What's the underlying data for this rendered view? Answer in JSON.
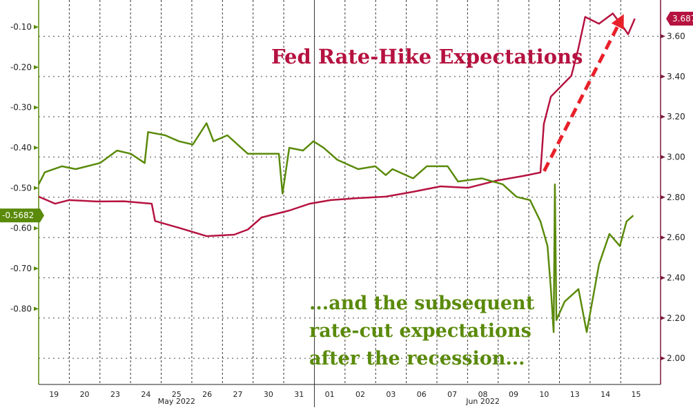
{
  "chart_data": {
    "type": "line",
    "title": "Fed Rate-Hike Expectations",
    "annotation": [
      "...and the subsequent",
      "rate-cut expectations",
      "after the recession..."
    ],
    "x_tick_labels": [
      "19",
      "20",
      "23",
      "24",
      "25",
      "26",
      "27",
      "30",
      "31",
      "01",
      "02",
      "03",
      "06",
      "07",
      "08",
      "09",
      "10",
      "13",
      "14",
      "15"
    ],
    "month_labels": [
      {
        "label": "May 2022",
        "from": 0,
        "to": 9
      },
      {
        "label": "Jun 2022",
        "from": 9,
        "to": 20
      }
    ],
    "x_unit": "trading days since 19 May 2022",
    "xlim": [
      0,
      20.3
    ],
    "left_axis": {
      "ticks": [
        "-0.10",
        "-0.20",
        "-0.30",
        "-0.40",
        "-0.50",
        "-0.60",
        "-0.70",
        "-0.80"
      ],
      "ylim": [
        -0.988,
        -0.033
      ]
    },
    "right_axis": {
      "ticks": [
        "3.60",
        "3.40",
        "3.20",
        "3.00",
        "2.80",
        "2.60",
        "2.40",
        "2.20",
        "2.00"
      ],
      "ylim": [
        1.87,
        3.78
      ]
    },
    "grid": true,
    "series": [
      {
        "name": "Rate-hike expectations",
        "axis": "right",
        "color": "#b5123f",
        "last_label": "3.6875",
        "points": [
          [
            0,
            2.803
          ],
          [
            0.54,
            2.768
          ],
          [
            0.99,
            2.786
          ],
          [
            1.89,
            2.779
          ],
          [
            2.79,
            2.78
          ],
          [
            3.69,
            2.768
          ],
          [
            3.8,
            2.682
          ],
          [
            4.58,
            2.648
          ],
          [
            5.48,
            2.607
          ],
          [
            6.38,
            2.614
          ],
          [
            6.83,
            2.64
          ],
          [
            7.28,
            2.7
          ],
          [
            8.18,
            2.734
          ],
          [
            8.85,
            2.768
          ],
          [
            9.53,
            2.786
          ],
          [
            10.43,
            2.796
          ],
          [
            11.33,
            2.803
          ],
          [
            12.22,
            2.827
          ],
          [
            13.12,
            2.854
          ],
          [
            14.02,
            2.847
          ],
          [
            14.92,
            2.882
          ],
          [
            15.82,
            2.906
          ],
          [
            16.38,
            2.923
          ],
          [
            16.49,
            3.164
          ],
          [
            16.72,
            3.3
          ],
          [
            17.17,
            3.37
          ],
          [
            17.39,
            3.404
          ],
          [
            17.62,
            3.542
          ],
          [
            17.84,
            3.696
          ],
          [
            18.29,
            3.662
          ],
          [
            18.74,
            3.713
          ],
          [
            19.08,
            3.645
          ],
          [
            19.24,
            3.61
          ],
          [
            19.46,
            3.6875
          ]
        ]
      },
      {
        "name": "Rate-cut expectations",
        "axis": "left",
        "color": "#5a8a0a",
        "last_label": "-0.5682",
        "points": [
          [
            0,
            -0.491
          ],
          [
            0.2,
            -0.461
          ],
          [
            0.76,
            -0.446
          ],
          [
            1.21,
            -0.453
          ],
          [
            2.0,
            -0.438
          ],
          [
            2.56,
            -0.407
          ],
          [
            3.01,
            -0.415
          ],
          [
            3.46,
            -0.438
          ],
          [
            3.57,
            -0.361
          ],
          [
            4.13,
            -0.369
          ],
          [
            4.58,
            -0.384
          ],
          [
            5.03,
            -0.392
          ],
          [
            5.48,
            -0.339
          ],
          [
            5.71,
            -0.384
          ],
          [
            6.16,
            -0.369
          ],
          [
            6.61,
            -0.4
          ],
          [
            6.83,
            -0.415
          ],
          [
            7.84,
            -0.415
          ],
          [
            7.96,
            -0.514
          ],
          [
            8.18,
            -0.4
          ],
          [
            8.63,
            -0.407
          ],
          [
            8.97,
            -0.384
          ],
          [
            9.3,
            -0.4
          ],
          [
            9.75,
            -0.43
          ],
          [
            10.43,
            -0.453
          ],
          [
            10.99,
            -0.446
          ],
          [
            11.33,
            -0.468
          ],
          [
            11.55,
            -0.453
          ],
          [
            12.22,
            -0.476
          ],
          [
            12.67,
            -0.446
          ],
          [
            13.35,
            -0.446
          ],
          [
            13.69,
            -0.484
          ],
          [
            14.47,
            -0.476
          ],
          [
            15.15,
            -0.491
          ],
          [
            15.6,
            -0.522
          ],
          [
            16.04,
            -0.53
          ],
          [
            16.38,
            -0.583
          ],
          [
            16.61,
            -0.644
          ],
          [
            16.72,
            -0.751
          ],
          [
            16.81,
            -0.858
          ],
          [
            16.85,
            -0.491
          ],
          [
            16.9,
            -0.828
          ],
          [
            17.17,
            -0.782
          ],
          [
            17.62,
            -0.751
          ],
          [
            17.89,
            -0.858
          ],
          [
            18.29,
            -0.69
          ],
          [
            18.63,
            -0.614
          ],
          [
            18.97,
            -0.644
          ],
          [
            19.19,
            -0.583
          ],
          [
            19.41,
            -0.5682
          ]
        ]
      }
    ],
    "arrow": {
      "color": "#e8202a",
      "from": [
        16.5,
        2.93
      ],
      "to": [
        19.1,
        3.71
      ]
    }
  }
}
